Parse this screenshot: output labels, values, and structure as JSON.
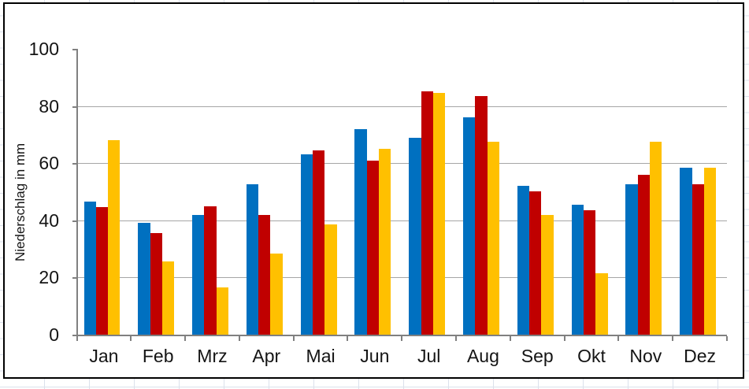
{
  "chart_data": {
    "type": "bar",
    "title": "",
    "xlabel": "",
    "ylabel": "Niederschlag in mm",
    "ylim": [
      0,
      100
    ],
    "ytick_interval": 20,
    "yticks": [
      0,
      20,
      40,
      60,
      80,
      100
    ],
    "grid": "horizontal-major, no line at 100",
    "legend": "none",
    "categories": [
      "Jan",
      "Feb",
      "Mrz",
      "Apr",
      "Mai",
      "Jun",
      "Jul",
      "Aug",
      "Sep",
      "Okt",
      "Nov",
      "Dez"
    ],
    "series": [
      {
        "name": "",
        "color": "#0070C0",
        "values": [
          46.5,
          39,
          42,
          52.5,
          63,
          72,
          69,
          76,
          52,
          45.5,
          52.5,
          58.5
        ]
      },
      {
        "name": "",
        "color": "#C00000",
        "values": [
          44.5,
          35.5,
          45,
          42,
          64.5,
          61,
          85,
          83.5,
          50,
          43.5,
          56,
          52.5
        ]
      },
      {
        "name": "",
        "color": "#FFC000",
        "values": [
          68,
          25.5,
          16.5,
          28.5,
          38.5,
          65,
          84.5,
          67.5,
          42,
          21.5,
          67.5,
          58.5
        ]
      }
    ],
    "axis_color": "#808080",
    "gridline_color": "#A6A6A6",
    "frame_border_color": "#000000",
    "background_grid_color": "#DBE1EC"
  }
}
